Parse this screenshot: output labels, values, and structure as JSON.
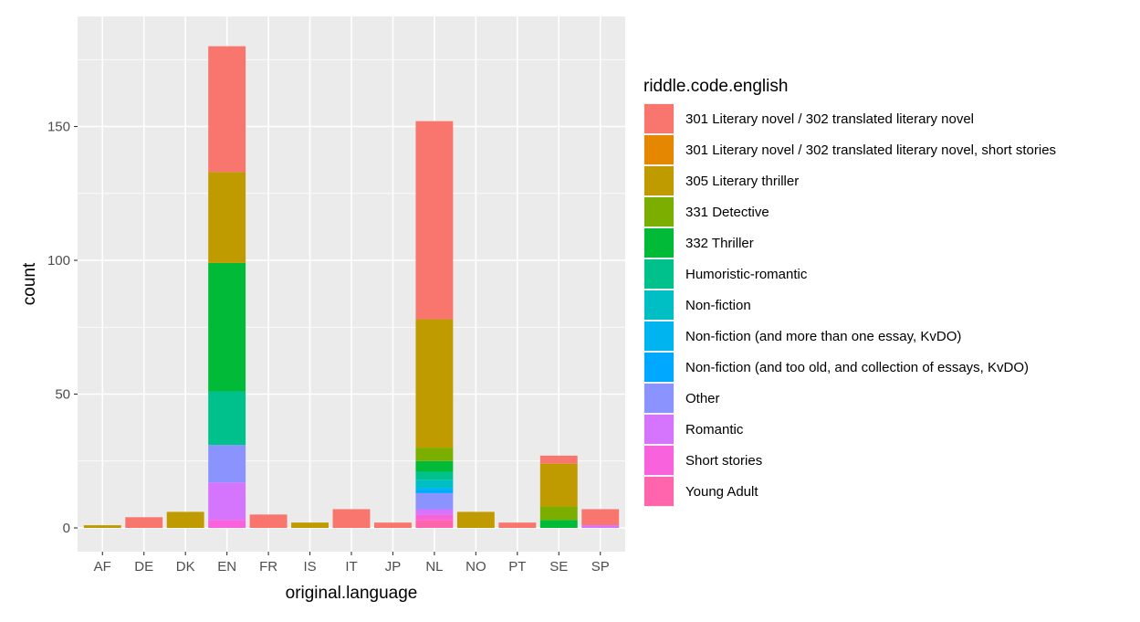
{
  "chart_data": {
    "type": "bar",
    "stacked": true,
    "xlabel": "original.language",
    "ylabel": "count",
    "ylim": [
      0,
      180
    ],
    "yticks": [
      0,
      50,
      100,
      150
    ],
    "grid": true,
    "legend_title": "riddle.code.english",
    "legend_position": "right",
    "categories": [
      "AF",
      "DE",
      "DK",
      "EN",
      "FR",
      "IS",
      "IT",
      "JP",
      "NL",
      "NO",
      "PT",
      "SE",
      "SP"
    ],
    "series": [
      {
        "name": "301 Literary novel / 302 translated literary novel",
        "color": "#F8766D",
        "values": [
          0,
          4,
          0,
          47,
          5,
          0,
          7,
          2,
          74,
          0,
          2,
          3,
          6
        ]
      },
      {
        "name": "301 Literary novel / 302 translated literary novel, short stories",
        "color": "#E58700",
        "values": [
          0,
          0,
          0,
          0,
          0,
          0,
          0,
          0,
          0,
          0,
          0,
          0,
          0
        ]
      },
      {
        "name": "305 Literary thriller",
        "color": "#C09B00",
        "values": [
          1,
          0,
          6,
          34,
          0,
          2,
          0,
          0,
          48,
          6,
          0,
          16,
          0
        ]
      },
      {
        "name": "331 Detective",
        "color": "#7CAE00",
        "values": [
          0,
          0,
          0,
          0,
          0,
          0,
          0,
          0,
          5,
          0,
          0,
          5,
          0
        ]
      },
      {
        "name": "332 Thriller",
        "color": "#00BA38",
        "values": [
          0,
          0,
          0,
          48,
          0,
          0,
          0,
          0,
          4,
          0,
          0,
          3,
          0
        ]
      },
      {
        "name": "Humoristic-romantic",
        "color": "#00C08B",
        "values": [
          0,
          0,
          0,
          20,
          0,
          0,
          0,
          0,
          3,
          0,
          0,
          0,
          0
        ]
      },
      {
        "name": "Non-fiction",
        "color": "#00BFC4",
        "values": [
          0,
          0,
          0,
          0,
          0,
          0,
          0,
          0,
          3,
          0,
          0,
          0,
          0
        ]
      },
      {
        "name": "Non-fiction (and more than one essay, KvDO)",
        "color": "#00B4F0",
        "values": [
          0,
          0,
          0,
          0,
          0,
          0,
          0,
          0,
          1,
          0,
          0,
          0,
          0
        ]
      },
      {
        "name": "Non-fiction (and too old, and collection of essays, KvDO)",
        "color": "#00A9FF",
        "values": [
          0,
          0,
          0,
          0,
          0,
          0,
          0,
          0,
          1,
          0,
          0,
          0,
          0
        ]
      },
      {
        "name": "Other",
        "color": "#8B93FF",
        "values": [
          0,
          0,
          0,
          14,
          0,
          0,
          0,
          0,
          6,
          0,
          0,
          0,
          0
        ]
      },
      {
        "name": "Romantic",
        "color": "#D575FE",
        "values": [
          0,
          0,
          0,
          14,
          0,
          0,
          0,
          0,
          2,
          0,
          0,
          0,
          1
        ]
      },
      {
        "name": "Short stories",
        "color": "#F962DD",
        "values": [
          0,
          0,
          0,
          3,
          0,
          0,
          0,
          0,
          2,
          0,
          0,
          0,
          0
        ]
      },
      {
        "name": "Young Adult",
        "color": "#FF65AC",
        "values": [
          0,
          0,
          0,
          0,
          0,
          0,
          0,
          0,
          3,
          0,
          0,
          0,
          0
        ]
      }
    ]
  }
}
